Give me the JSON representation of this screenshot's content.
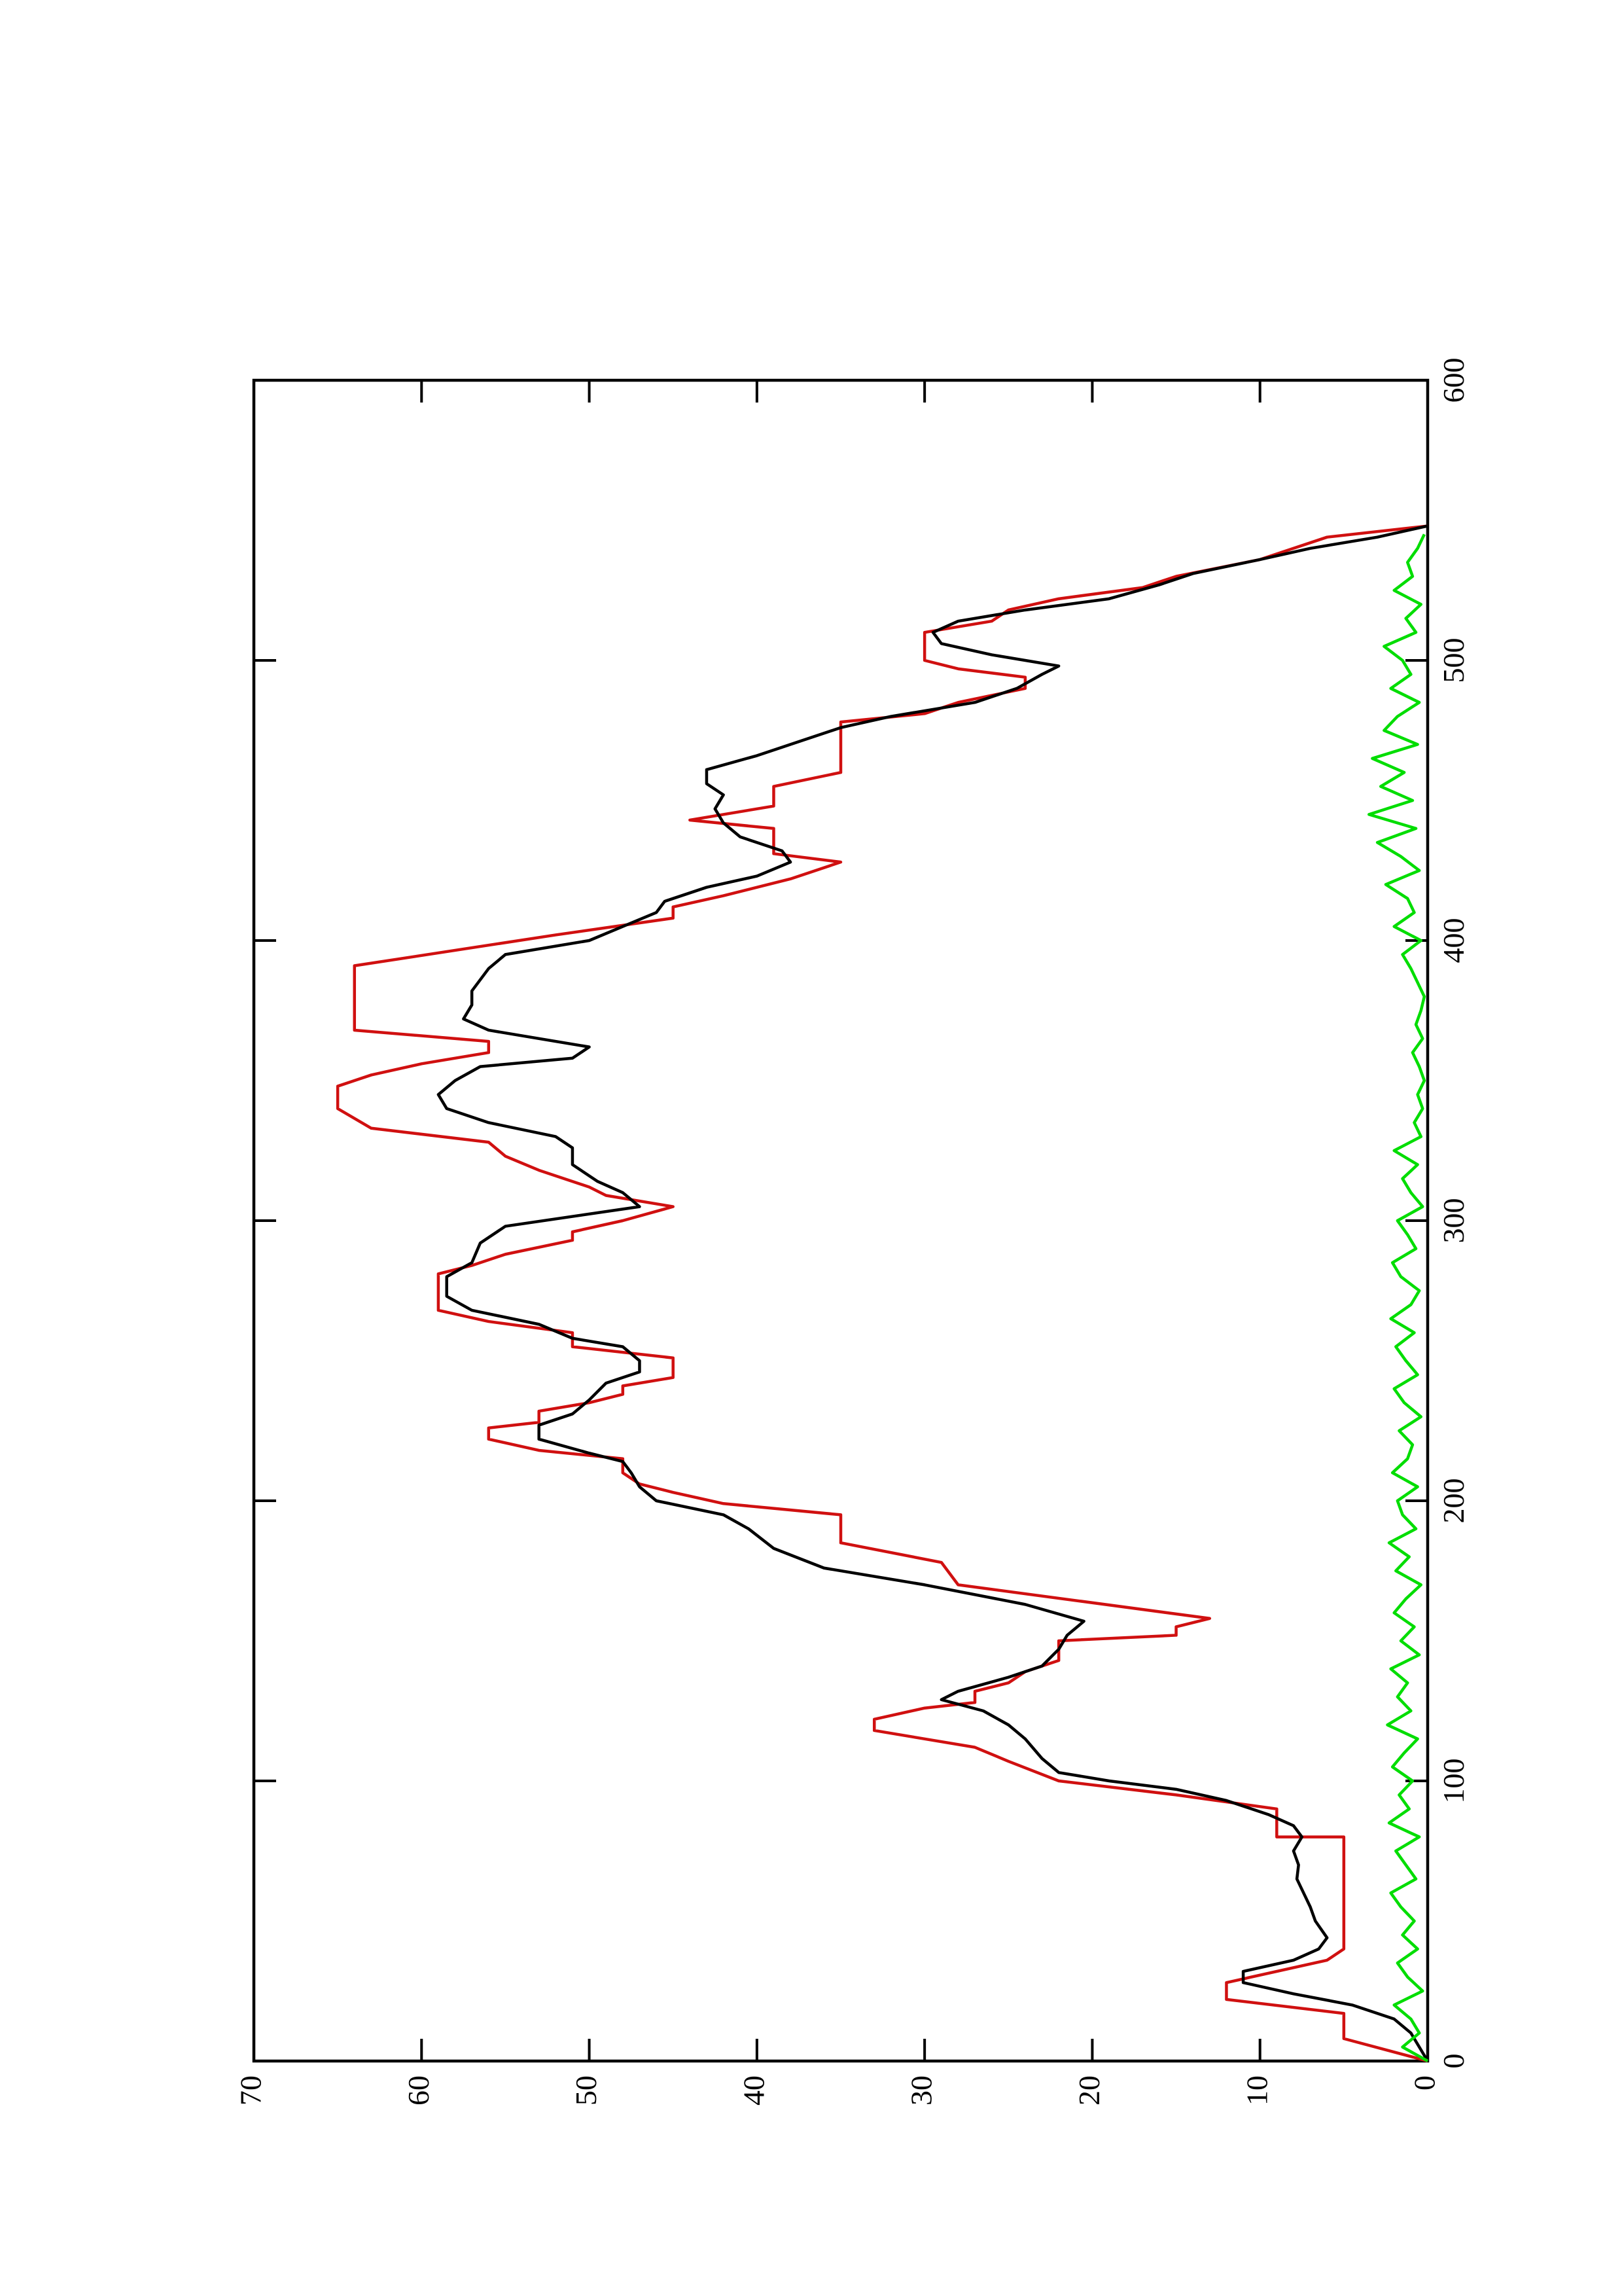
{
  "chart_data": {
    "type": "line",
    "xlim": [
      0,
      600
    ],
    "ylim": [
      0,
      70
    ],
    "xticks": [
      0,
      100,
      200,
      300,
      400,
      500,
      600
    ],
    "yticks": [
      0,
      10,
      20,
      30,
      40,
      50,
      60,
      70
    ],
    "grid": false,
    "series": [
      {
        "color": "#d01010",
        "x": [
          0,
          8,
          17,
          22,
          28,
          36,
          40,
          80,
          80,
          90,
          95,
          100,
          107,
          112,
          115,
          118,
          122,
          126,
          128,
          132,
          135,
          139,
          143,
          150,
          152,
          155,
          158,
          170,
          178,
          185,
          195,
          199,
          203,
          206,
          210,
          215,
          218,
          222,
          226,
          228,
          232,
          235,
          238,
          241,
          244,
          251,
          255,
          260,
          264,
          268,
          281,
          284,
          288,
          293,
          296,
          300,
          305,
          309,
          312,
          318,
          323,
          328,
          333,
          340,
          348,
          352,
          356,
          360,
          364,
          368,
          391,
          402,
          408,
          412,
          416,
          422,
          428,
          431,
          440,
          443,
          448,
          455,
          460,
          478,
          481,
          485,
          490,
          494,
          497,
          500,
          510,
          514,
          518,
          522,
          526,
          530,
          536,
          540,
          544,
          548
        ],
        "values": [
          0,
          5,
          5,
          12,
          12,
          6,
          5,
          5,
          9,
          9,
          15,
          22,
          25,
          27,
          30,
          33,
          33,
          30,
          27,
          27,
          25,
          24,
          22,
          22,
          15,
          15,
          13,
          28,
          29,
          35,
          35,
          42,
          45,
          47,
          48,
          48,
          53,
          56,
          56,
          53,
          53,
          50,
          48,
          48,
          45,
          45,
          51,
          51,
          56,
          59,
          59,
          57,
          55,
          51,
          51,
          48,
          45,
          49,
          50,
          53,
          55,
          56,
          63,
          65,
          65,
          63,
          60,
          56,
          56,
          64,
          64,
          52,
          45,
          45,
          42,
          38,
          35,
          39,
          39,
          44,
          39,
          39,
          35,
          35,
          30,
          28,
          24,
          24,
          28,
          30,
          30,
          26,
          25,
          22,
          17,
          15,
          10,
          8,
          6,
          0
        ]
      },
      {
        "color": "#000000",
        "x": [
          0,
          5,
          10,
          15,
          20,
          24,
          28,
          32,
          36,
          40,
          44,
          50,
          55,
          60,
          65,
          70,
          75,
          80,
          84,
          88,
          93,
          97,
          100,
          103,
          108,
          115,
          120,
          125,
          129,
          132,
          137,
          141,
          147,
          152,
          157,
          163,
          170,
          176,
          183,
          190,
          195,
          200,
          205,
          210,
          214,
          217,
          222,
          227,
          231,
          236,
          242,
          246,
          250,
          255,
          258,
          263,
          268,
          273,
          280,
          285,
          292,
          298,
          305,
          310,
          314,
          320,
          326,
          330,
          335,
          340,
          345,
          350,
          355,
          358,
          362,
          365,
          368,
          372,
          377,
          382,
          390,
          395,
          400,
          405,
          410,
          414,
          419,
          423,
          428,
          432,
          437,
          442,
          447,
          452,
          456,
          461,
          466,
          470,
          476,
          480,
          485,
          490,
          495,
          498,
          502,
          506,
          510,
          514,
          518,
          522,
          527,
          531,
          536,
          540,
          544,
          548
        ],
        "values": [
          0,
          0.5,
          1,
          2,
          4.5,
          8,
          11,
          11,
          8,
          6.5,
          6,
          6.7,
          7,
          7.4,
          7.8,
          7.7,
          8,
          7.5,
          8,
          9.5,
          12,
          15,
          19,
          22,
          23,
          24,
          25,
          26.5,
          29,
          28,
          25,
          23,
          22,
          21.5,
          20.5,
          24,
          30,
          36,
          39,
          40.5,
          42,
          46,
          47,
          47.5,
          48,
          50,
          53,
          53,
          51,
          50,
          49,
          47,
          47,
          48,
          51,
          53,
          57,
          58.5,
          58.5,
          57,
          56.5,
          55,
          47,
          48,
          49.5,
          51,
          51,
          52,
          56,
          58.5,
          59,
          58,
          56.5,
          51,
          50,
          53,
          56,
          57.5,
          57,
          57,
          56,
          55,
          50,
          48,
          46,
          45.5,
          43,
          40,
          38,
          38.5,
          41,
          42,
          42.5,
          42,
          43,
          43,
          40,
          38,
          35,
          32,
          27,
          24.5,
          23,
          22,
          26,
          29,
          29.5,
          28,
          24,
          19,
          16,
          14,
          10,
          7,
          3,
          0
        ]
      },
      {
        "color": "#00dd00",
        "x": [
          0,
          5,
          10,
          15,
          20,
          25,
          30,
          35,
          40,
          45,
          50,
          55,
          60,
          65,
          70,
          75,
          80,
          85,
          90,
          95,
          100,
          105,
          110,
          115,
          120,
          125,
          130,
          135,
          140,
          145,
          150,
          155,
          160,
          165,
          170,
          175,
          180,
          185,
          190,
          195,
          200,
          205,
          210,
          215,
          220,
          225,
          230,
          235,
          240,
          245,
          250,
          255,
          260,
          265,
          270,
          275,
          280,
          285,
          290,
          295,
          300,
          305,
          310,
          315,
          320,
          325,
          330,
          335,
          340,
          345,
          350,
          355,
          360,
          365,
          370,
          375,
          380,
          385,
          390,
          395,
          400,
          405,
          410,
          415,
          420,
          425,
          430,
          435,
          440,
          445,
          450,
          455,
          460,
          465,
          470,
          475,
          480,
          485,
          490,
          495,
          500,
          505,
          510,
          515,
          520,
          525,
          530,
          535,
          540,
          545
        ],
        "values": [
          0,
          1.5,
          0.5,
          1,
          2,
          0.3,
          1.2,
          1.8,
          0.6,
          1.5,
          0.8,
          1.6,
          2.2,
          0.7,
          1.3,
          1.9,
          0.5,
          2.3,
          1.1,
          1.7,
          0.9,
          2.1,
          1.4,
          0.6,
          2.4,
          1.0,
          1.8,
          1.2,
          2.2,
          0.5,
          1.6,
          0.8,
          2.0,
          1.3,
          0.4,
          1.9,
          1.1,
          2.3,
          0.7,
          1.5,
          1.8,
          0.6,
          2.1,
          1.2,
          0.9,
          1.7,
          0.4,
          1.4,
          2.0,
          0.6,
          1.3,
          1.9,
          0.8,
          2.2,
          1.0,
          0.5,
          1.6,
          2.1,
          0.7,
          1.2,
          1.8,
          0.3,
          1.0,
          1.5,
          0.6,
          2.0,
          0.4,
          0.8,
          0.3,
          0.6,
          0.2,
          0.5,
          0.9,
          0.3,
          0.7,
          0.4,
          0.2,
          0.6,
          1.0,
          1.5,
          0.4,
          2.0,
          0.8,
          1.2,
          2.5,
          0.5,
          1.6,
          3.0,
          0.7,
          3.5,
          0.9,
          2.8,
          1.4,
          3.3,
          0.6,
          2.6,
          1.8,
          0.5,
          2.2,
          1.0,
          1.5,
          2.6,
          0.7,
          1.3,
          0.4,
          2.0,
          0.9,
          1.2,
          0.6,
          0.2
        ]
      }
    ]
  }
}
